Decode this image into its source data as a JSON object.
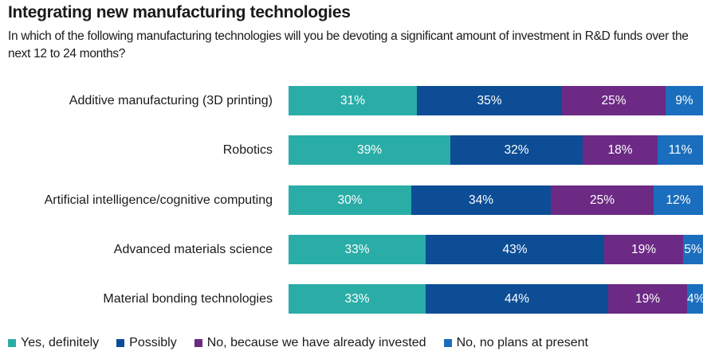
{
  "chart_data": {
    "type": "bar",
    "orientation": "horizontal",
    "stacked": true,
    "title": "Integrating new manufacturing technologies",
    "subtitle": "In which of the following manufacturing technologies will you be devoting a significant amount of investment in R&D funds over the next 12 to 24 months?",
    "xlabel": "",
    "ylabel": "",
    "unit": "%",
    "categories": [
      "Additive manufacturing (3D printing)",
      "Robotics",
      "Artificial intelligence/cognitive computing",
      "Advanced materials science",
      "Material bonding technologies"
    ],
    "series": [
      {
        "name": "Yes, definitely",
        "color": "#2aada7",
        "values": [
          31,
          39,
          30,
          33,
          33
        ]
      },
      {
        "name": "Possibly",
        "color": "#0d4d96",
        "values": [
          35,
          32,
          34,
          43,
          44
        ]
      },
      {
        "name": "No, because we have already invested",
        "color": "#6c2a84",
        "values": [
          25,
          18,
          25,
          19,
          19
        ]
      },
      {
        "name": "No, no plans at present",
        "color": "#1a6ebd",
        "values": [
          9,
          11,
          12,
          5,
          4
        ]
      }
    ],
    "data_labels": true,
    "legend_position": "bottom-left",
    "grid": false
  }
}
